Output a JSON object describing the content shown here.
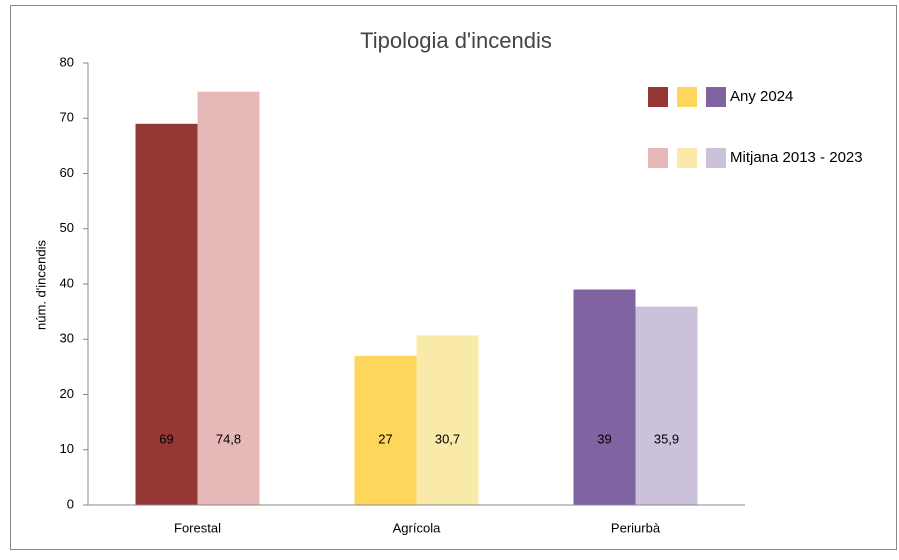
{
  "chart_data": {
    "type": "bar",
    "title": "Tipologia d'incendis",
    "y_label": "núm. d'incendis",
    "categories": [
      "Forestal",
      "Agrícola",
      "Periurbà"
    ],
    "series": [
      {
        "name": "Any 2024",
        "colors": [
          "#953735",
          "#ffd65c",
          "#8064a2"
        ],
        "values": [
          69,
          27,
          39
        ]
      },
      {
        "name": "Mitjana 2013 - 2023",
        "colors": [
          "#e6b9b8",
          "#f9eaaa",
          "#ccc1da"
        ],
        "values": [
          74.8,
          30.7,
          35.9
        ],
        "value_labels": [
          "74,8",
          "30,7",
          "35,9"
        ]
      }
    ],
    "ylim": [
      0,
      80
    ],
    "yticks": [
      0,
      10,
      20,
      30,
      40,
      50,
      60,
      70,
      80
    ],
    "grid": false,
    "legend": "upper right"
  }
}
